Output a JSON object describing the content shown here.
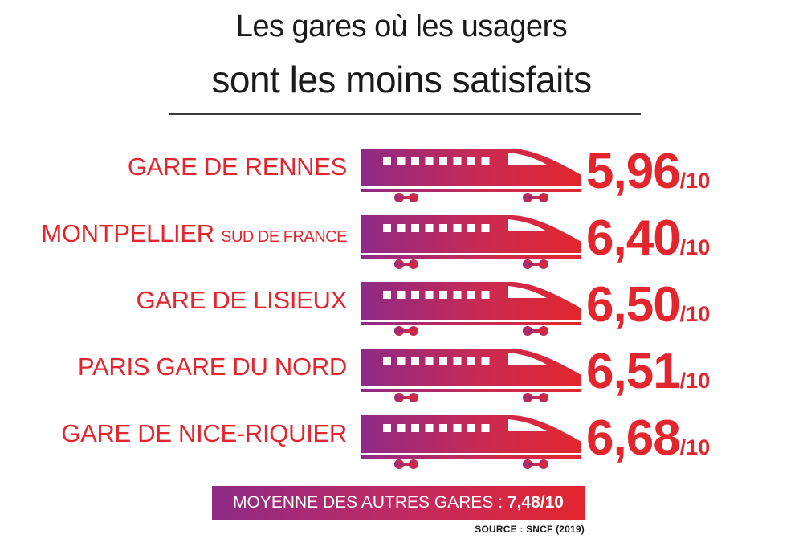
{
  "title_line1": "Les gares où les usagers",
  "title_line2": "sont les moins satisfaits",
  "chart_data": {
    "type": "bar",
    "categories": [
      "GARE DE RENNES",
      "MONTPELLIER SUD DE FRANCE",
      "GARE DE LISIEUX",
      "PARIS GARE DU NORD",
      "GARE DE NICE-RIQUIER"
    ],
    "values": [
      5.96,
      6.4,
      6.5,
      6.51,
      6.68
    ],
    "scale_max": 10
  },
  "rows": [
    {
      "label_main": "GARE DE RENNES",
      "label_sub": "",
      "value": "5,96",
      "denominator": "/10"
    },
    {
      "label_main": "MONTPELLIER",
      "label_sub": "SUD DE FRANCE",
      "value": "6,40",
      "denominator": "/10"
    },
    {
      "label_main": "GARE DE LISIEUX",
      "label_sub": "",
      "value": "6,50",
      "denominator": "/10"
    },
    {
      "label_main": "PARIS GARE DU NORD",
      "label_sub": "",
      "value": "6,51",
      "denominator": "/10"
    },
    {
      "label_main": "GARE DE NICE-RIQUIER",
      "label_sub": "",
      "value": "6,68",
      "denominator": "/10"
    }
  ],
  "average": {
    "label": "MOYENNE DES AUTRES GARES : ",
    "value": "7,48/10"
  },
  "source": "SOURCE : SNCF (2019)",
  "colors": {
    "red": "#e3262e",
    "purple": "#8e2a86",
    "text": "#1a1a1a"
  },
  "icon": "train-icon"
}
